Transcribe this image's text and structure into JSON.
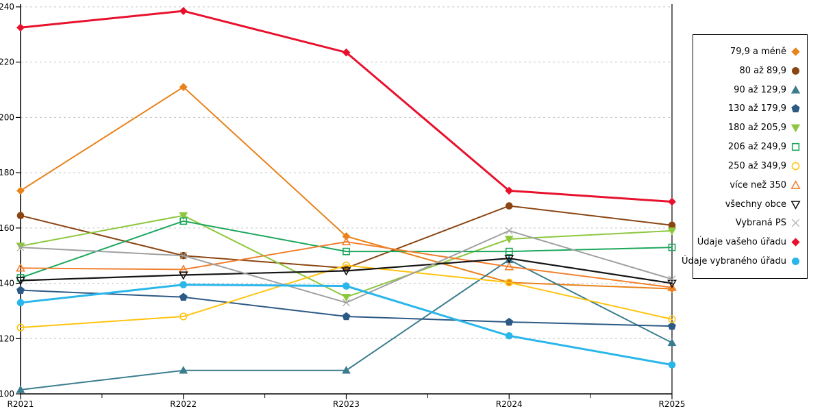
{
  "chart_data": {
    "type": "line",
    "title": "",
    "xlabel": "",
    "ylabel": "",
    "categories": [
      "R2021",
      "R2022",
      "R2023",
      "R2024",
      "R2025"
    ],
    "y_axis": {
      "min": 100,
      "max": 240,
      "tick_step": 20,
      "tick_labels": [
        "100",
        "120",
        "140",
        "160",
        "180",
        "200",
        "220",
        "240"
      ]
    },
    "grid": "horizontal dashed",
    "legend_position": "right",
    "colors": {
      "background": "#ffffff",
      "gridline": "#c4c4c4",
      "axis": "#000000"
    },
    "series": [
      {
        "name": "79,9 a méně",
        "color": "#E8821A",
        "marker": "diamond",
        "open": false,
        "line_width": 2,
        "values": [
          173.5,
          211,
          157,
          140.3,
          138
        ]
      },
      {
        "name": "80 až 89,9",
        "color": "#8A4513",
        "marker": "circle",
        "open": false,
        "line_width": 2,
        "values": [
          164.5,
          150,
          145.5,
          168,
          161
        ]
      },
      {
        "name": "90 až 129,9",
        "color": "#3B7D8E",
        "marker": "triangle-up",
        "open": false,
        "line_width": 2,
        "values": [
          101.5,
          108.5,
          108.5,
          148.5,
          118.5
        ]
      },
      {
        "name": "130 až 179,9",
        "color": "#2C5985",
        "marker": "pentagon",
        "open": false,
        "line_width": 2,
        "values": [
          137.5,
          135,
          128,
          126,
          124.5
        ]
      },
      {
        "name": "180 až 205,9",
        "color": "#8DC73F",
        "marker": "triangle-down",
        "open": false,
        "line_width": 2,
        "values": [
          153.5,
          164.5,
          135,
          156,
          159
        ]
      },
      {
        "name": "206 až 249,9",
        "color": "#1CA75C",
        "marker": "square",
        "open": true,
        "line_width": 2,
        "values": [
          142,
          162.5,
          151.5,
          151.5,
          153
        ]
      },
      {
        "name": "250 až 349,9",
        "color": "#FFC410",
        "marker": "circle",
        "open": true,
        "line_width": 2,
        "values": [
          124,
          128,
          146.5,
          140.3,
          127
        ]
      },
      {
        "name": "více než 350",
        "color": "#F08030",
        "marker": "triangle-up",
        "open": true,
        "line_width": 2,
        "values": [
          145.5,
          145,
          155,
          146,
          138.5
        ]
      },
      {
        "name": "všechny obce",
        "color": "#141414",
        "marker": "triangle-down",
        "open": true,
        "line_width": 2.2,
        "values": [
          141,
          143,
          144.5,
          149,
          140
        ]
      },
      {
        "name": "Vybraná PS",
        "color": "#A0A0A0",
        "marker": "x",
        "open": true,
        "line_width": 2,
        "values": [
          153,
          150,
          133,
          159,
          141.5
        ]
      },
      {
        "name": "Údaje vašeho úřadu",
        "color": "#E8112D",
        "marker": "diamond",
        "open": false,
        "line_width": 3,
        "values": [
          232.5,
          238.5,
          223.5,
          173.5,
          169.5
        ]
      },
      {
        "name": "Údaje vybraného úřadu",
        "color": "#29B6EA",
        "marker": "circle",
        "open": false,
        "line_width": 3,
        "values": [
          133,
          139.5,
          139,
          121,
          110.5
        ]
      }
    ]
  }
}
